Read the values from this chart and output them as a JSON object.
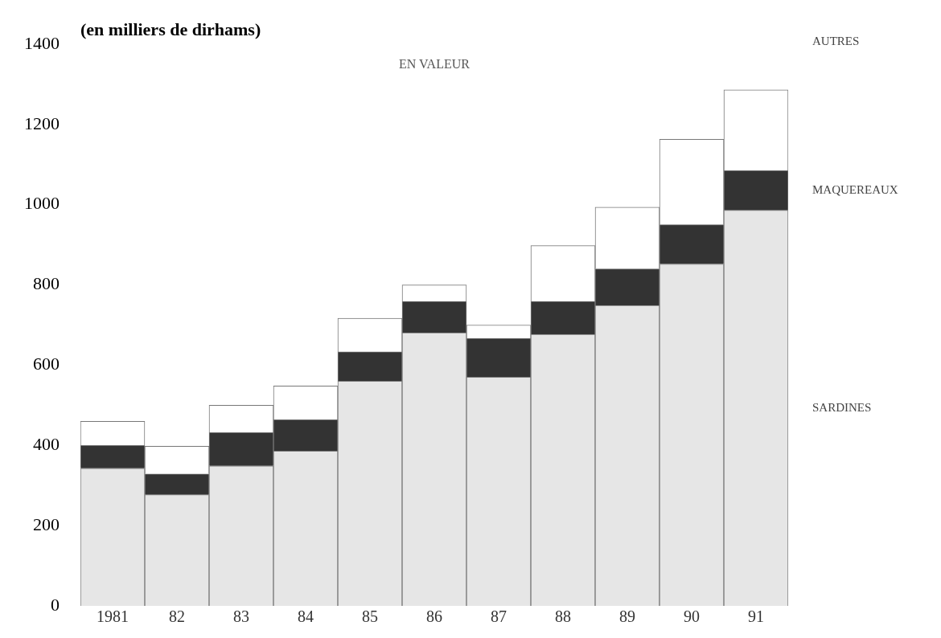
{
  "chart_data": {
    "type": "bar",
    "stacked": true,
    "title": "EN VALEUR",
    "ylabel": "(en milliers de dirhams)",
    "categories": [
      "1981",
      "82",
      "83",
      "84",
      "85",
      "86",
      "87",
      "88",
      "89",
      "90",
      "91"
    ],
    "series": [
      {
        "name": "SARDINES",
        "color": "#e6e6e6",
        "values": [
          343,
          277,
          349,
          386,
          560,
          681,
          570,
          677,
          749,
          852,
          986
        ]
      },
      {
        "name": "MAQUEREAUX",
        "color": "#333333",
        "values": [
          57,
          52,
          83,
          78,
          73,
          78,
          97,
          82,
          91,
          98,
          99
        ]
      },
      {
        "name": "AUTRES",
        "color": "#ffffff",
        "values": [
          60,
          69,
          68,
          84,
          84,
          41,
          33,
          139,
          154,
          213,
          201
        ]
      }
    ],
    "ylim": [
      0,
      1400
    ],
    "yticks": [
      0,
      200,
      400,
      600,
      800,
      1000,
      1200,
      1400
    ],
    "grid": false,
    "legend": false
  }
}
